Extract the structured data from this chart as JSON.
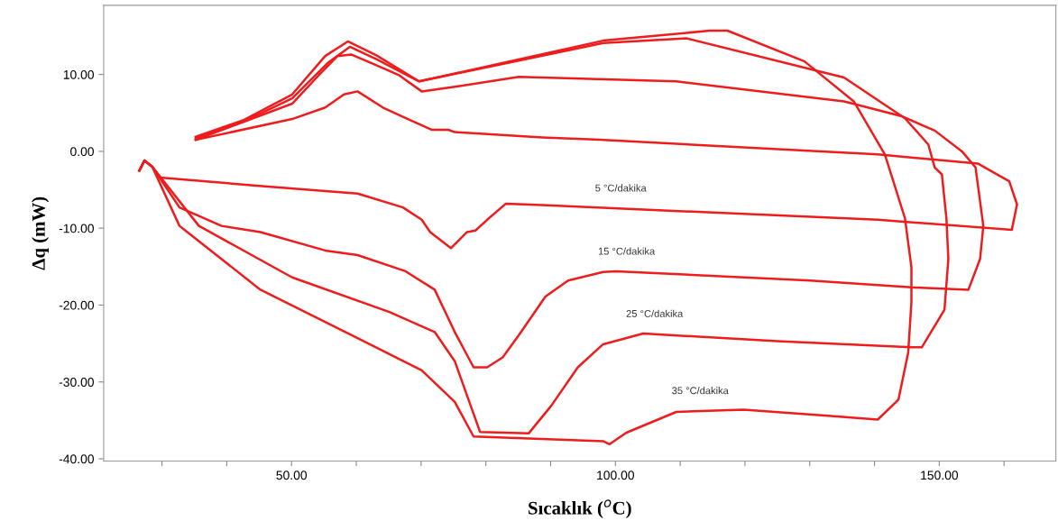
{
  "chart_data": {
    "type": "line",
    "xlabel": "Sıcaklık ($^{o}$C)",
    "ylabel": "Δq (mW)",
    "xlim": [
      21,
      168
    ],
    "ylim": [
      -40.3,
      19
    ],
    "xticks": [
      {
        "value": 30,
        "label": null
      },
      {
        "value": 40,
        "label": null
      },
      {
        "value": 50,
        "label": "50.00"
      },
      {
        "value": 60,
        "label": null
      },
      {
        "value": 70,
        "label": null
      },
      {
        "value": 80,
        "label": null
      },
      {
        "value": 90,
        "label": null
      },
      {
        "value": 100,
        "label": "100.00"
      },
      {
        "value": 110,
        "label": null
      },
      {
        "value": 120,
        "label": null
      },
      {
        "value": 130,
        "label": null
      },
      {
        "value": 140,
        "label": null
      },
      {
        "value": 150,
        "label": "150.00"
      },
      {
        "value": 160,
        "label": null
      }
    ],
    "yticks": [
      {
        "value": -40,
        "label": "-40.00"
      },
      {
        "value": -30,
        "label": "-30.00"
      },
      {
        "value": -20,
        "label": "-20.00"
      },
      {
        "value": -10,
        "label": "-10.00"
      },
      {
        "value": 0,
        "label": "0.00"
      },
      {
        "value": 10,
        "label": "10.00"
      }
    ],
    "grid": false,
    "marker": "none",
    "line_style": "solid",
    "series": [
      {
        "name": "5 °C/dakika",
        "color": "#ee1c1c",
        "x": [
          26.5,
          27.3,
          28.5,
          29.7,
          45,
          60.2,
          67.2,
          70.1,
          71.4,
          74.6,
          77.1,
          78.4,
          80.2,
          83.1,
          88.7,
          140.5,
          161.2,
          162,
          160.8,
          156,
          140.5,
          97.6,
          88.7,
          75.2,
          74.2,
          71.7,
          68.2,
          64.1,
          60.2,
          58.1,
          55.2,
          50.1,
          35.2
        ],
        "values": [
          -2.5,
          -1.2,
          -2,
          -3.4,
          -4.5,
          -5.5,
          -7.3,
          -8.9,
          -10.5,
          -12.6,
          -10.5,
          -10.3,
          -8.9,
          -6.8,
          -7,
          -8.9,
          -10.2,
          -6.9,
          -3.9,
          -1.6,
          -0.4,
          1.5,
          1.8,
          2.5,
          2.8,
          2.8,
          4.1,
          5.7,
          7.8,
          7.4,
          5.7,
          4.2,
          1.5
        ]
      },
      {
        "name": "15 °C/dakika",
        "color": "#ee1c1c",
        "x": [
          26.5,
          27.3,
          28.5,
          32.7,
          39.2,
          45.2,
          55.2,
          60.2,
          67.6,
          72.1,
          75.2,
          78.1,
          80.2,
          82.6,
          85.1,
          89.2,
          92.7,
          98.1,
          100.1,
          130.1,
          145.7,
          154.5,
          156.3,
          156.8,
          155.6,
          153.5,
          149.3,
          144.1,
          135.3,
          109.4,
          88.7,
          85.1,
          75.2,
          70.1,
          66.6,
          63.1,
          59.2,
          57.1,
          54.2,
          50.1,
          35.2
        ],
        "values": [
          -2.5,
          -1.2,
          -2,
          -7.3,
          -9.7,
          -10.5,
          -12.9,
          -13.5,
          -15.6,
          -18,
          -23.5,
          -28.1,
          -28.1,
          -26.8,
          -23.9,
          -18.9,
          -16.8,
          -15.7,
          -15.6,
          -16.8,
          -17.7,
          -18,
          -14,
          -9.7,
          -2.1,
          0,
          2.7,
          4.6,
          6.5,
          9.1,
          9.6,
          9.7,
          8.4,
          7.8,
          9.9,
          11.2,
          12.6,
          12.4,
          9.9,
          6.2,
          1.5
        ]
      },
      {
        "name": "25 °C/dakika",
        "color": "#ee1c1c",
        "x": [
          26.5,
          27.3,
          28.5,
          35.7,
          50.1,
          65.1,
          72.1,
          75.2,
          79.1,
          86.6,
          90.1,
          94.2,
          98.1,
          104.3,
          125,
          145.7,
          147.3,
          150.8,
          151.4,
          151.1,
          150.4,
          149.3,
          148.3,
          144.7,
          135.3,
          111,
          98.1,
          69.7,
          63.1,
          59,
          55.6,
          50.1,
          42.7,
          35.2
        ],
        "values": [
          -2.5,
          -1.2,
          -2,
          -9.7,
          -16.4,
          -20.9,
          -23.5,
          -27.3,
          -36.5,
          -36.7,
          -33.1,
          -28.1,
          -25.1,
          -23.7,
          -24.7,
          -25.5,
          -25.5,
          -20.6,
          -14,
          -8.7,
          -3,
          -2.1,
          0.9,
          4.3,
          9.6,
          14.7,
          14.1,
          9.1,
          12,
          13.6,
          11.5,
          6.9,
          3.9,
          1.7
        ]
      },
      {
        "name": "35 °C/dakika",
        "color": "#ee1c1c",
        "x": [
          26.5,
          27.3,
          28.5,
          32.7,
          45.2,
          60.2,
          70.1,
          75.2,
          78.1,
          98.1,
          99.1,
          101.7,
          109.4,
          119.8,
          132.8,
          140.5,
          143.7,
          145.2,
          145.7,
          145.7,
          144.7,
          141.6,
          136.8,
          129.2,
          117.3,
          114.6,
          98.1,
          69.7,
          63.1,
          58.7,
          55.2,
          50.1,
          42.7,
          35.2
        ],
        "values": [
          -2.5,
          -1.2,
          -2,
          -9.7,
          -18,
          -24.3,
          -28.5,
          -32.6,
          -37.1,
          -37.7,
          -38.1,
          -36.6,
          -33.9,
          -33.6,
          -34.4,
          -34.9,
          -32.3,
          -26.2,
          -19.6,
          -15.1,
          -8.7,
          -0.4,
          6.5,
          11.7,
          15.7,
          15.7,
          14.4,
          9.1,
          12.5,
          14.3,
          12.4,
          7.4,
          4.1,
          1.9
        ]
      }
    ],
    "tick_labels": "xy"
  }
}
